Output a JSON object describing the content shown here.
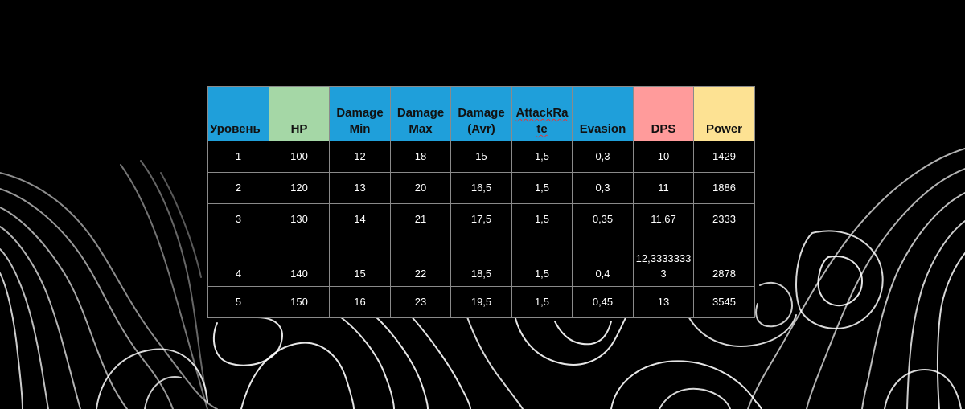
{
  "table": {
    "columns": [
      {
        "label": "Уровень",
        "color": "#1f9fda"
      },
      {
        "label": "HP",
        "color": "#a5d7a6"
      },
      {
        "label": "Damage Min",
        "color": "#1f9fda"
      },
      {
        "label": "Damage Max",
        "color": "#1f9fda"
      },
      {
        "label": "Damage (Avr)",
        "color": "#1f9fda"
      },
      {
        "label": "AttackRate",
        "color": "#1f9fda"
      },
      {
        "label": "Evasion",
        "color": "#1f9fda"
      },
      {
        "label": "DPS",
        "color": "#ff9b9b"
      },
      {
        "label": "Power",
        "color": "#fde293"
      }
    ],
    "rows": [
      [
        "1",
        "100",
        "12",
        "18",
        "15",
        "1,5",
        "0,3",
        "10",
        "1429"
      ],
      [
        "2",
        "120",
        "13",
        "20",
        "16,5",
        "1,5",
        "0,3",
        "11",
        "1886"
      ],
      [
        "3",
        "130",
        "14",
        "21",
        "17,5",
        "1,5",
        "0,35",
        "11,67",
        "2333"
      ],
      [
        "4",
        "140",
        "15",
        "22",
        "18,5",
        "1,5",
        "0,4",
        "12,33333333",
        "2878"
      ],
      [
        "5",
        "150",
        "16",
        "23",
        "19,5",
        "1,5",
        "0,45",
        "13",
        "3545"
      ]
    ]
  },
  "colors": {
    "background": "#000000",
    "contour_lines": "#ffffff",
    "grid": "#8a8a8a"
  }
}
